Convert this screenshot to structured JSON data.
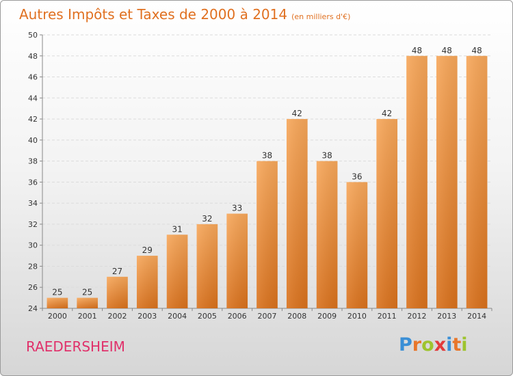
{
  "title": "Autres Impôts et Taxes de 2000 à 2014",
  "unit": "(en milliers d'€)",
  "commune": "RAEDERSHEIM",
  "brand": {
    "letters": [
      "P",
      "r",
      "o",
      "x",
      "i",
      "t",
      "i"
    ],
    "colors": [
      "#3a8fd6",
      "#e8762a",
      "#9ec42e",
      "#e23b3b",
      "#3a8fd6",
      "#e8762a",
      "#9ec42e"
    ]
  },
  "chart_data": {
    "type": "bar",
    "title": "Autres Impôts et Taxes de 2000 à 2014",
    "ylabel": "",
    "xlabel": "",
    "categories": [
      "2000",
      "2001",
      "2002",
      "2003",
      "2004",
      "2005",
      "2006",
      "2007",
      "2008",
      "2009",
      "2010",
      "2011",
      "2012",
      "2013",
      "2014"
    ],
    "values": [
      25,
      25,
      27,
      29,
      31,
      32,
      33,
      38,
      42,
      38,
      36,
      42,
      48,
      48,
      48
    ],
    "ylim": [
      24,
      50
    ],
    "yticks": [
      24,
      26,
      28,
      30,
      32,
      34,
      36,
      38,
      40,
      42,
      44,
      46,
      48,
      50
    ],
    "grid": true,
    "bar_color": "#f0922e"
  }
}
